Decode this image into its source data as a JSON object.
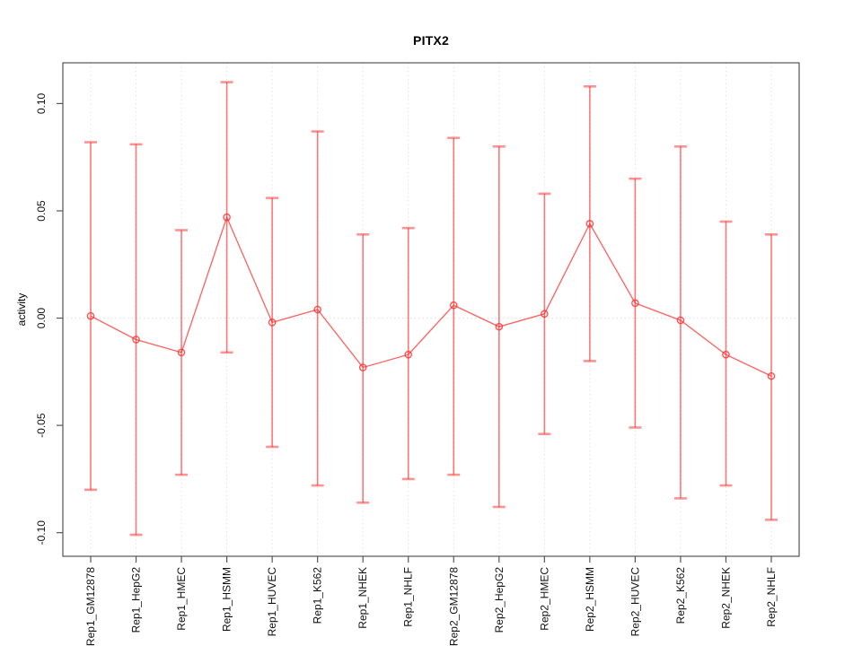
{
  "page": {
    "background": "#ffffff"
  },
  "chart_data": {
    "type": "line",
    "title": "PITX2",
    "xlabel": "",
    "ylabel": "activity",
    "legend": "none",
    "grid": "dotted vertical gridline per category plus dotted horizontal line at zero",
    "marker": "open-circle",
    "error_bars": true,
    "series_color": "#ff2a2a",
    "gridline_color": "#e4e4e4",
    "zero_line_color": "#dcdcdc",
    "axis_color": "#555555",
    "tick_label_color": "#111111",
    "ylim": [
      -0.111,
      0.119
    ],
    "yticks": [
      -0.1,
      -0.05,
      0.0,
      0.05,
      0.1
    ],
    "ytick_labels": [
      "-0.10",
      "-0.05",
      "0.00",
      "0.05",
      "0.10"
    ],
    "categories": [
      "Rep1_GM12878",
      "Rep1_HepG2",
      "Rep1_HMEC",
      "Rep1_HSMM",
      "Rep1_HUVEC",
      "Rep1_K562",
      "Rep1_NHEK",
      "Rep1_NHLF",
      "Rep2_GM12878",
      "Rep2_HepG2",
      "Rep2_HMEC",
      "Rep2_HSMM",
      "Rep2_HUVEC",
      "Rep2_K562",
      "Rep2_NHEK",
      "Rep2_NHLF"
    ],
    "series": [
      {
        "name": "activity",
        "values": [
          0.001,
          -0.01,
          -0.016,
          0.047,
          -0.002,
          0.004,
          -0.023,
          -0.017,
          0.006,
          -0.004,
          0.002,
          0.044,
          0.007,
          -0.001,
          -0.017,
          -0.027
        ],
        "upper": [
          0.082,
          0.081,
          0.041,
          0.11,
          0.056,
          0.087,
          0.039,
          0.042,
          0.084,
          0.08,
          0.058,
          0.108,
          0.065,
          0.08,
          0.045,
          0.039
        ],
        "lower": [
          -0.08,
          -0.101,
          -0.073,
          -0.016,
          -0.06,
          -0.078,
          -0.086,
          -0.075,
          -0.073,
          -0.088,
          -0.054,
          -0.02,
          -0.051,
          -0.084,
          -0.078,
          -0.094
        ]
      }
    ]
  }
}
